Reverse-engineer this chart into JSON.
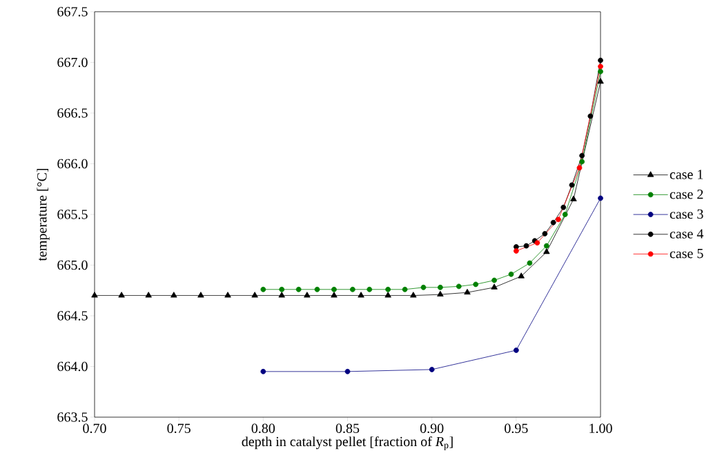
{
  "chart_data": {
    "type": "line",
    "xlabel": "depth in catalyst pellet [fraction of *R*$_{p}$]",
    "ylabel": "temperature [°C]",
    "xlim": [
      0.7,
      1.0
    ],
    "xticks": [
      {
        "value": 0.7,
        "label": "0.70"
      },
      {
        "value": 0.75,
        "label": "0.75"
      },
      {
        "value": 0.8,
        "label": "0.80"
      },
      {
        "value": 0.85,
        "label": "0.85"
      },
      {
        "value": 0.9,
        "label": "0.90"
      },
      {
        "value": 0.95,
        "label": "0.95"
      },
      {
        "value": 1.0,
        "label": "1.00"
      }
    ],
    "ylim": [
      663.5,
      667.5
    ],
    "yticks": [
      {
        "value": 663.5,
        "label": "663.5"
      },
      {
        "value": 664.0,
        "label": "664.0"
      },
      {
        "value": 664.5,
        "label": "664.5"
      },
      {
        "value": 665.0,
        "label": "665.0"
      },
      {
        "value": 665.5,
        "label": "665.5"
      },
      {
        "value": 666.0,
        "label": "666.0"
      },
      {
        "value": 666.5,
        "label": "666.5"
      },
      {
        "value": 667.0,
        "label": "667.0"
      },
      {
        "value": 667.5,
        "label": "667.5"
      }
    ],
    "grid": false,
    "legend": "right",
    "line_style": "solid",
    "series": [
      {
        "name": "case 1",
        "color": "#000000",
        "marker": "triangle",
        "x": [
          0.7,
          0.716,
          0.732,
          0.747,
          0.763,
          0.779,
          0.795,
          0.811,
          0.826,
          0.842,
          0.858,
          0.874,
          0.889,
          0.905,
          0.921,
          0.937,
          0.953,
          0.968,
          0.984,
          1.0
        ],
        "values": [
          664.7,
          664.7,
          664.7,
          664.7,
          664.7,
          664.7,
          664.7,
          664.7,
          664.7,
          664.7,
          664.7,
          664.7,
          664.7,
          664.71,
          664.73,
          664.78,
          664.89,
          665.13,
          665.65,
          666.81
        ]
      },
      {
        "name": "case 2",
        "color": "#008000",
        "marker": "circle",
        "x": [
          0.8,
          0.811,
          0.821,
          0.832,
          0.842,
          0.853,
          0.863,
          0.874,
          0.884,
          0.895,
          0.905,
          0.916,
          0.926,
          0.937,
          0.947,
          0.958,
          0.968,
          0.979,
          0.989,
          1.0
        ],
        "values": [
          664.76,
          664.76,
          664.76,
          664.76,
          664.76,
          664.76,
          664.76,
          664.76,
          664.76,
          664.78,
          664.78,
          664.79,
          664.81,
          664.85,
          664.91,
          665.02,
          665.19,
          665.5,
          666.02,
          666.91
        ]
      },
      {
        "name": "case 3",
        "color": "#000080",
        "marker": "circle",
        "x": [
          0.8,
          0.85,
          0.9,
          0.95,
          1.0
        ],
        "values": [
          663.95,
          663.95,
          663.97,
          664.16,
          665.66
        ]
      },
      {
        "name": "case 4",
        "color": "#000000",
        "marker": "circle",
        "x": [
          0.95,
          0.956,
          0.961,
          0.967,
          0.972,
          0.978,
          0.983,
          0.989,
          0.994,
          1.0
        ],
        "values": [
          665.18,
          665.19,
          665.24,
          665.31,
          665.42,
          665.57,
          665.79,
          666.08,
          666.47,
          667.02
        ]
      },
      {
        "name": "case 5",
        "color": "#ff0000",
        "marker": "circle",
        "x": [
          0.95,
          0.9625,
          0.975,
          0.9875,
          1.0
        ],
        "values": [
          665.14,
          665.22,
          665.45,
          665.96,
          666.96
        ]
      }
    ]
  }
}
